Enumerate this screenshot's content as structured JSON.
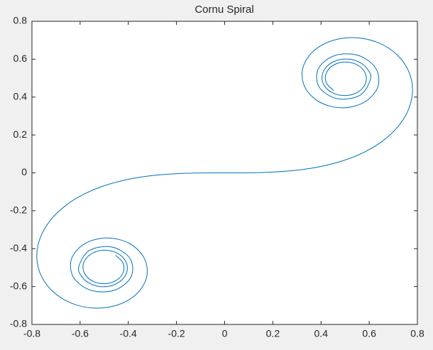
{
  "chart_data": {
    "type": "line",
    "title": "Cornu Spiral",
    "xlim": [
      -0.8,
      0.8
    ],
    "ylim": [
      -0.8,
      0.8
    ],
    "xticks": [
      -0.8,
      -0.6,
      -0.4,
      -0.2,
      0,
      0.2,
      0.4,
      0.6,
      0.8
    ],
    "yticks": [
      -0.8,
      -0.6,
      -0.4,
      -0.2,
      0,
      0.2,
      0.4,
      0.6,
      0.8
    ],
    "grid": false,
    "series": [
      {
        "color": "#0072bd",
        "x": [
          -0.4528,
          -0.4228,
          -0.4205,
          -0.4466,
          -0.4917,
          -0.5402,
          -0.5763,
          -0.5882,
          -0.5727,
          -0.5348,
          -0.4859,
          -0.4404,
          -0.4107,
          -0.405,
          -0.4243,
          -0.4634,
          -0.5123,
          -0.5591,
          -0.5928,
          -0.6058,
          -0.5624,
          -0.4675,
          -0.3925,
          -0.389,
          -0.4574,
          -0.555,
          -0.6266,
          -0.6363,
          -0.5816,
          -0.4882,
          -0.3944,
          -0.3336,
          -0.3238,
          -0.3655,
          -0.4453,
          -0.5431,
          -0.6386,
          -0.7154,
          -0.7638,
          -0.7799,
          -0.7648,
          -0.7228,
          -0.6597,
          -0.5811,
          -0.4923,
          -0.3975,
          -0.2994,
          -0.1999,
          -0.0999,
          0,
          0.0999,
          0.1999,
          0.2994,
          0.3975,
          0.4923,
          0.5811,
          0.6597,
          0.7228,
          0.7648,
          0.7799,
          0.7638,
          0.7154,
          0.6386,
          0.5431,
          0.4453,
          0.3655,
          0.3238,
          0.3336,
          0.3944,
          0.4882,
          0.5816,
          0.6363,
          0.6266,
          0.555,
          0.4574,
          0.389,
          0.3925,
          0.4675,
          0.5624,
          0.6058,
          0.5928,
          0.5591,
          0.5123,
          0.4634,
          0.4243,
          0.405,
          0.4107,
          0.4404,
          0.4859,
          0.5348,
          0.5727,
          0.5882,
          0.5763,
          0.5402,
          0.4917,
          0.4466,
          0.4205,
          0.4228,
          0.4528
        ],
        "values": [
          -0.4346,
          -0.4736,
          -0.5228,
          -0.5646,
          -0.5845,
          -0.576,
          -0.5423,
          -0.4944,
          -0.4475,
          -0.416,
          -0.4088,
          -0.4278,
          -0.4675,
          -0.5166,
          -0.5622,
          -0.5925,
          -0.6004,
          -0.584,
          -0.5477,
          -0.4963,
          -0.4101,
          -0.3915,
          -0.4529,
          -0.55,
          -0.6192,
          -0.6197,
          -0.5532,
          -0.4557,
          -0.3743,
          -0.3434,
          -0.3733,
          -0.4509,
          -0.5492,
          -0.6389,
          -0.6975,
          -0.7135,
          -0.6863,
          -0.6234,
          -0.5365,
          -0.4383,
          -0.3398,
          -0.2493,
          -0.1721,
          -0.1105,
          -0.0647,
          -0.0334,
          -0.0141,
          -0.0042,
          -0.0005,
          0,
          0.0005,
          0.0042,
          0.0141,
          0.0334,
          0.0647,
          0.1105,
          0.1721,
          0.2493,
          0.3398,
          0.4383,
          0.5365,
          0.6234,
          0.6863,
          0.7135,
          0.6975,
          0.6389,
          0.5492,
          0.4509,
          0.3733,
          0.3434,
          0.3743,
          0.4557,
          0.5532,
          0.6197,
          0.6192,
          0.55,
          0.4529,
          0.3915,
          0.4101,
          0.4963,
          0.5477,
          0.584,
          0.6004,
          0.5925,
          0.5622,
          0.5166,
          0.4675,
          0.4278,
          0.4088,
          0.416,
          0.4475,
          0.4944,
          0.5423,
          0.576,
          0.5845,
          0.5646,
          0.5228,
          0.4736,
          0.4346
        ]
      }
    ]
  }
}
